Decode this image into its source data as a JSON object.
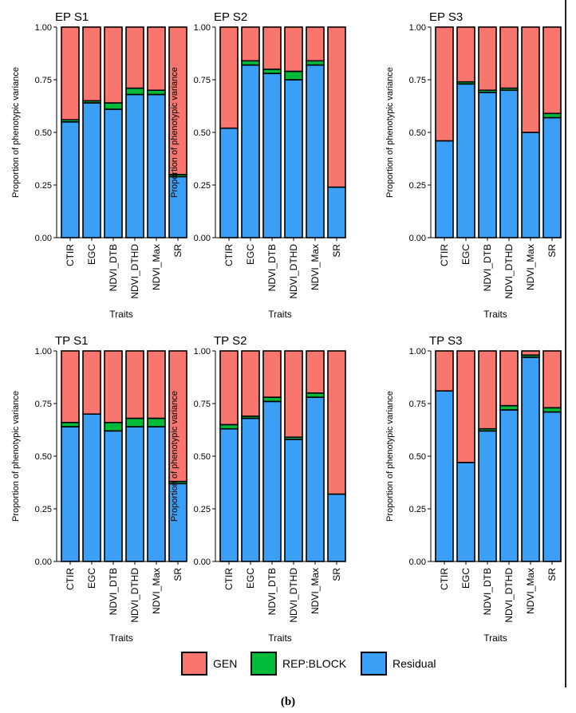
{
  "caption": "(b)",
  "legend": [
    {
      "key": "gen",
      "label": "GEN",
      "color": "#F8766D"
    },
    {
      "key": "rep",
      "label": "REP:BLOCK",
      "color": "#00BA38"
    },
    {
      "key": "res",
      "label": "Residual",
      "color": "#3A9FF5"
    }
  ],
  "chart_data": [
    {
      "type": "bar",
      "stacked": true,
      "title": "EP S1",
      "xlabel": "Traits",
      "ylabel": "Proportion of phenotypic variance",
      "ylim": [
        0,
        1
      ],
      "yticks": [
        "0.00",
        "0.25",
        "0.50",
        "0.75",
        "1.00"
      ],
      "categories": [
        "CTIR",
        "EGC",
        "NDVI_DTB",
        "NDVI_DTHD",
        "NDVI_Max",
        "SR"
      ],
      "series": [
        {
          "name": "Residual",
          "values": [
            0.55,
            0.64,
            0.61,
            0.68,
            0.68,
            0.29
          ]
        },
        {
          "name": "REP:BLOCK",
          "values": [
            0.01,
            0.01,
            0.03,
            0.03,
            0.02,
            0.01
          ]
        },
        {
          "name": "GEN",
          "values": [
            0.44,
            0.35,
            0.36,
            0.29,
            0.3,
            0.7
          ]
        }
      ]
    },
    {
      "type": "bar",
      "stacked": true,
      "title": "EP S2",
      "xlabel": "Traits",
      "ylabel": "Proportion of phenotypic variance",
      "ylim": [
        0,
        1
      ],
      "yticks": [
        "0.00",
        "0.25",
        "0.50",
        "0.75",
        "1.00"
      ],
      "categories": [
        "CTIR",
        "EGC",
        "NDVI_DTB",
        "NDVI_DTHD",
        "NDVI_Max",
        "SR"
      ],
      "series": [
        {
          "name": "Residual",
          "values": [
            0.52,
            0.82,
            0.78,
            0.75,
            0.82,
            0.24
          ]
        },
        {
          "name": "REP:BLOCK",
          "values": [
            0.0,
            0.02,
            0.02,
            0.04,
            0.02,
            0.0
          ]
        },
        {
          "name": "GEN",
          "values": [
            0.48,
            0.16,
            0.2,
            0.21,
            0.16,
            0.76
          ]
        }
      ]
    },
    {
      "type": "bar",
      "stacked": true,
      "title": "EP S3",
      "xlabel": "Traits",
      "ylabel": "Proportion of phenotypic variance",
      "ylim": [
        0,
        1
      ],
      "yticks": [
        "0.00",
        "0.25",
        "0.50",
        "0.75",
        "1.00"
      ],
      "categories": [
        "CTIR",
        "EGC",
        "NDVI_DTB",
        "NDVI_DTHD",
        "NDVI_Max",
        "SR"
      ],
      "series": [
        {
          "name": "Residual",
          "values": [
            0.46,
            0.73,
            0.69,
            0.7,
            0.5,
            0.57
          ]
        },
        {
          "name": "REP:BLOCK",
          "values": [
            0.0,
            0.01,
            0.01,
            0.01,
            0.0,
            0.02
          ]
        },
        {
          "name": "GEN",
          "values": [
            0.54,
            0.26,
            0.3,
            0.29,
            0.5,
            0.41
          ]
        }
      ]
    },
    {
      "type": "bar",
      "stacked": true,
      "title": "TP S1",
      "xlabel": "Traits",
      "ylabel": "Proportion of phenotypic variance",
      "ylim": [
        0,
        1
      ],
      "yticks": [
        "0.00",
        "0.25",
        "0.50",
        "0.75",
        "1.00"
      ],
      "categories": [
        "CTIR",
        "EGC",
        "NDVI_DTB",
        "NDVI_DTHD",
        "NDVI_Max",
        "SR"
      ],
      "series": [
        {
          "name": "Residual",
          "values": [
            0.64,
            0.7,
            0.62,
            0.64,
            0.64,
            0.37
          ]
        },
        {
          "name": "REP:BLOCK",
          "values": [
            0.02,
            0.0,
            0.04,
            0.04,
            0.04,
            0.01
          ]
        },
        {
          "name": "GEN",
          "values": [
            0.34,
            0.3,
            0.34,
            0.32,
            0.32,
            0.62
          ]
        }
      ]
    },
    {
      "type": "bar",
      "stacked": true,
      "title": "TP S2",
      "xlabel": "Traits",
      "ylabel": "Proportion of phenotypic variance",
      "ylim": [
        0,
        1
      ],
      "yticks": [
        "0.00",
        "0.25",
        "0.50",
        "0.75",
        "1.00"
      ],
      "categories": [
        "CTIR",
        "EGC",
        "NDVI_DTB",
        "NDVI_DTHD",
        "NDVI_Max",
        "SR"
      ],
      "series": [
        {
          "name": "Residual",
          "values": [
            0.63,
            0.68,
            0.76,
            0.58,
            0.78,
            0.32
          ]
        },
        {
          "name": "REP:BLOCK",
          "values": [
            0.02,
            0.01,
            0.02,
            0.01,
            0.02,
            0.0
          ]
        },
        {
          "name": "GEN",
          "values": [
            0.35,
            0.31,
            0.22,
            0.41,
            0.2,
            0.68
          ]
        }
      ]
    },
    {
      "type": "bar",
      "stacked": true,
      "title": "TP S3",
      "xlabel": "Traits",
      "ylabel": "Proportion of phenotypic variance",
      "ylim": [
        0,
        1
      ],
      "yticks": [
        "0.00",
        "0.25",
        "0.50",
        "0.75",
        "1.00"
      ],
      "categories": [
        "CTIR",
        "EGC",
        "NDVI_DTB",
        "NDVI_DTHD",
        "NDVI_Max",
        "SR"
      ],
      "series": [
        {
          "name": "Residual",
          "values": [
            0.81,
            0.47,
            0.62,
            0.72,
            0.97,
            0.71
          ]
        },
        {
          "name": "REP:BLOCK",
          "values": [
            0.0,
            0.0,
            0.01,
            0.02,
            0.01,
            0.02
          ]
        },
        {
          "name": "GEN",
          "values": [
            0.19,
            0.53,
            0.37,
            0.26,
            0.02,
            0.27
          ]
        }
      ]
    }
  ]
}
